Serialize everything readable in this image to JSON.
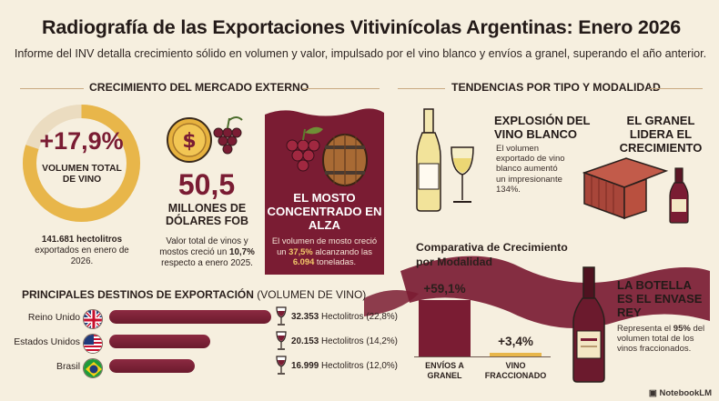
{
  "header": {
    "title": "Radiografía de las Exportaciones Vitivinícolas Argentinas: Enero 2026",
    "subtitle": "Informe del INV detalla crecimiento sólido en volumen y valor, impulsado por el vino blanco y envíos a granel, superando el año anterior."
  },
  "sections": {
    "left_heading": "CRECIMIENTO DEL MERCADO EXTERNO",
    "right_heading": "TENDENCIAS POR TIPO Y MODALIDAD"
  },
  "volume": {
    "value": "+17,9%",
    "label": "VOLUMEN TOTAL DE VINO",
    "note_strong": "141.681 hectolitros",
    "note_rest": "exportados en enero de 2026.",
    "ring_fill": 0.8
  },
  "value_fob": {
    "value": "50,5",
    "label": "MILLONES DE DÓLARES FOB",
    "note_pre": "Valor total de vinos y mostos creció un ",
    "note_pct": "10,7%",
    "note_post": " respecto a enero 2025."
  },
  "mosto": {
    "title": "EL MOSTO CONCENTRADO EN ALZA",
    "note_pre": "El volumen de mosto creció un ",
    "note_pct": "37,5%",
    "note_mid": " alcanzando las ",
    "note_tons": "6.094",
    "note_post": " toneladas."
  },
  "destinations": {
    "heading": "PRINCIPALES DESTINOS DE EXPORTACIÓN",
    "heading_sub": "(VOLUMEN DE VINO)",
    "items": [
      {
        "country": "Reino Unido",
        "hl": "32.353",
        "unit": "Hectolitros",
        "share": "(22,8%)",
        "volume": 32353
      },
      {
        "country": "Estados Unidos",
        "hl": "20.153",
        "unit": "Hectolitros",
        "share": "(14,2%)",
        "volume": 20153
      },
      {
        "country": "Brasil",
        "hl": "16.999",
        "unit": "Hectolitros",
        "share": "(12,0%)",
        "volume": 16999
      }
    ]
  },
  "trends": {
    "white": {
      "title": "EXPLOSIÓN DEL VINO BLANCO",
      "note": "El volumen exportado de vino blanco aumentó un impresionante 134%."
    },
    "bulk": {
      "title": "EL GRANEL LIDERA EL CRECIMIENTO"
    },
    "bottle": {
      "title": "LA BOTELLA ES EL ENVASE REY",
      "note_pre": "Representa el ",
      "note_pct": "95%",
      "note_post": " del volumen total de los vinos fraccionados."
    }
  },
  "comparison": {
    "title": "Comparativa de Crecimiento por Modalidad",
    "columns": [
      {
        "label": "ENVÍOS A GRANEL",
        "display": "+59,1%",
        "value": 59.1,
        "color": "#7a1c33"
      },
      {
        "label": "VINO FRACCIONADO",
        "display": "+3,4%",
        "value": 3.4,
        "color": "#e8b64a"
      }
    ]
  },
  "brand": "NotebookLM",
  "colors": {
    "wine": "#7a1c33",
    "gold": "#e8b64a",
    "cream": "#f6efdf"
  }
}
